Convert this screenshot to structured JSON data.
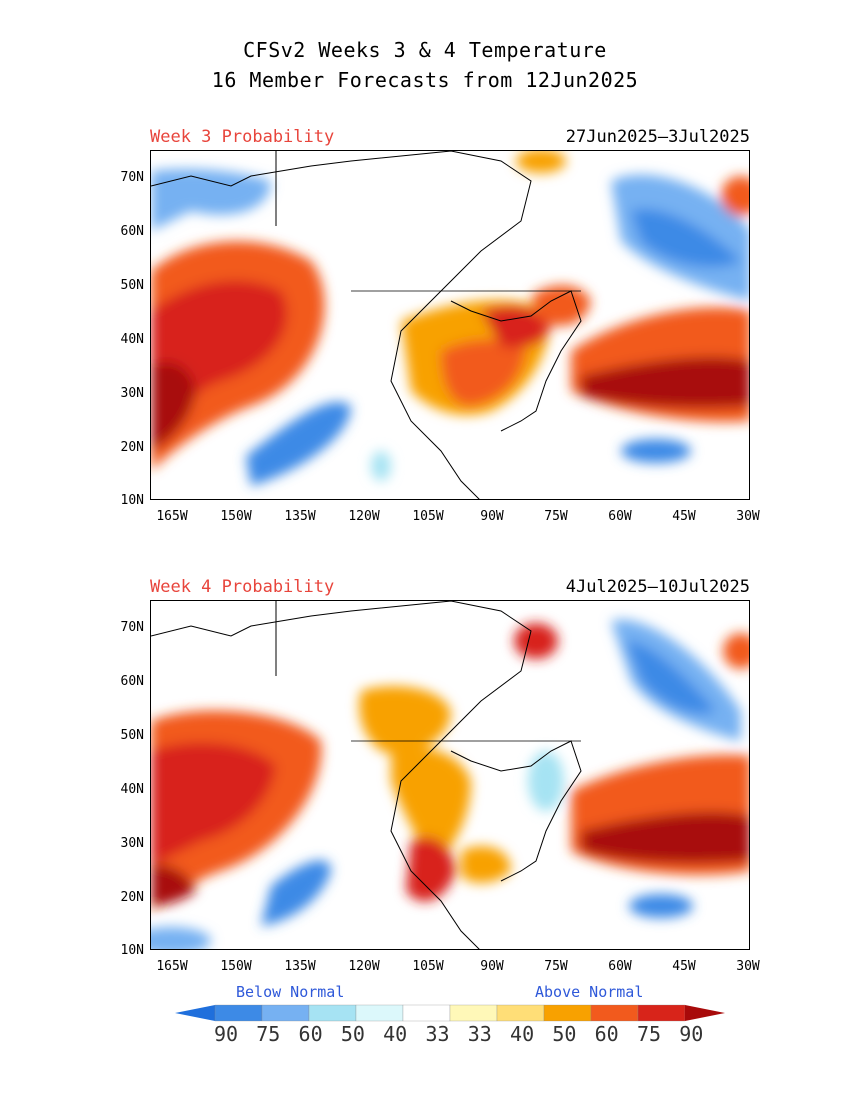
{
  "title_line1": "CFSv2 Weeks 3 & 4 Temperature",
  "title_line2": "16 Member Forecasts from 12Jun2025",
  "panels": [
    {
      "label": "Week 3 Probability",
      "dates": "27Jun2025–3Jul2025"
    },
    {
      "label": "Week 4 Probability",
      "dates": "4Jul2025–10Jul2025"
    }
  ],
  "lat_labels": [
    "70N",
    "60N",
    "50N",
    "40N",
    "30N",
    "20N",
    "10N"
  ],
  "lon_labels": [
    "165W",
    "150W",
    "135W",
    "120W",
    "105W",
    "90W",
    "75W",
    "60W",
    "45W",
    "30W"
  ],
  "legend": {
    "below": "Below Normal",
    "above": "Above Normal",
    "values": [
      "90",
      "75",
      "60",
      "50",
      "40",
      "33",
      "33",
      "40",
      "50",
      "60",
      "75",
      "90"
    ],
    "colors": [
      "#1f6fdc",
      "#3d8ae6",
      "#76b1f2",
      "#a6e3f3",
      "#dcf8fb",
      "#ffffff",
      "#fff8b8",
      "#ffde77",
      "#f8a100",
      "#f25a1d",
      "#d8241a",
      "#a80a0a"
    ]
  }
}
